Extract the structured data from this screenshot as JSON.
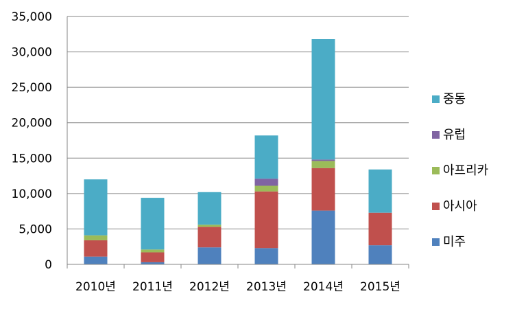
{
  "chart_data": {
    "type": "bar",
    "stacked": true,
    "title": "",
    "xlabel": "",
    "ylabel": "",
    "categories": [
      "2010년",
      "2011년",
      "2012년",
      "2013년",
      "2014년",
      "2015년"
    ],
    "ylim": [
      0,
      35000
    ],
    "yticks": [
      0,
      5000,
      10000,
      15000,
      20000,
      25000,
      30000,
      35000
    ],
    "ytick_labels": [
      "0",
      "5,000",
      "10,000",
      "15,000",
      "20,000",
      "25,000",
      "30,000",
      "35,000"
    ],
    "grid": true,
    "legend_position": "right",
    "series": [
      {
        "name": "미주",
        "color": "#4F81BD",
        "values": [
          1100,
          300,
          2400,
          2300,
          7600,
          2700
        ]
      },
      {
        "name": "아시아",
        "color": "#C0504D",
        "values": [
          2300,
          1400,
          2900,
          8000,
          6000,
          4600
        ]
      },
      {
        "name": "아프리카",
        "color": "#9BBB59",
        "values": [
          700,
          400,
          300,
          800,
          1000,
          0
        ]
      },
      {
        "name": "유럽",
        "color": "#8064A2",
        "values": [
          0,
          0,
          0,
          1000,
          200,
          0
        ]
      },
      {
        "name": "중동",
        "color": "#4BACC6",
        "values": [
          7900,
          7300,
          4600,
          6100,
          17000,
          6100
        ]
      }
    ]
  }
}
